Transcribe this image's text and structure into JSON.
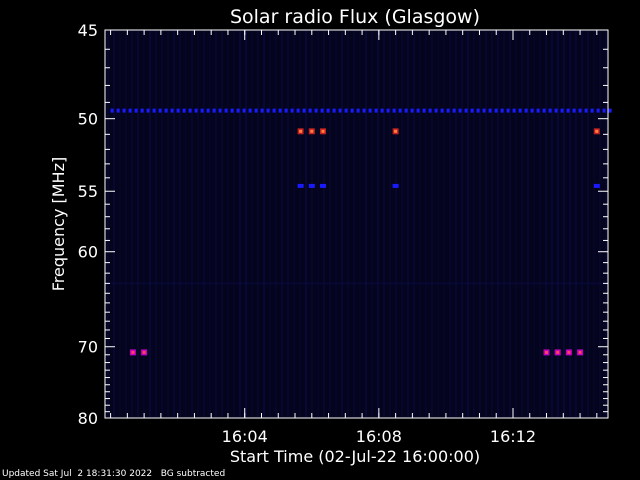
{
  "chart_data": {
    "type": "heatmap",
    "title": "Solar radio Flux (Glasgow)",
    "xlabel": "Start Time (02-Jul-22 16:00:00)",
    "ylabel": "Frequency [MHz]",
    "x_unit": "time (HH:MM)",
    "xlim": [
      "15:59:50",
      "16:14:50"
    ],
    "ylim": [
      45,
      80
    ],
    "y_axis_inverted": true,
    "y_scale": "reciprocal",
    "x_ticks": [
      "16:04",
      "16:08",
      "16:12"
    ],
    "y_ticks": [
      45,
      50,
      55,
      60,
      70,
      80
    ],
    "colors": {
      "background": "#000000",
      "plot_background": "#04041c",
      "faint_stripes": "#0a0a45",
      "blue_band": "#1a1aff",
      "hot_spot": "#ff8040",
      "magenta_spot": "#c000c0"
    },
    "features": [
      {
        "name": "continuous band",
        "frequency_mhz": 49.5,
        "time_range": [
          "16:00",
          "16:15"
        ],
        "intensity": "blue"
      },
      {
        "name": "bursts",
        "frequency_mhz": 50.8,
        "times": [
          "16:05:40",
          "16:06:00",
          "16:06:20",
          "16:08:30",
          "16:14:30"
        ],
        "intensity": "hot"
      },
      {
        "name": "bursts",
        "frequency_mhz": 54.6,
        "times": [
          "16:05:40",
          "16:06:00",
          "16:06:20",
          "16:08:30",
          "16:14:30"
        ],
        "intensity": "blue"
      },
      {
        "name": "bursts",
        "frequency_mhz": 70.7,
        "times": [
          "16:00:40",
          "16:01:00",
          "16:13:00",
          "16:13:20",
          "16:13:40",
          "16:14:00"
        ],
        "intensity": "magenta"
      }
    ]
  },
  "footer": {
    "updated": "Updated Sat Jul  2 18:31:30 2022",
    "note": "BG subtracted"
  }
}
